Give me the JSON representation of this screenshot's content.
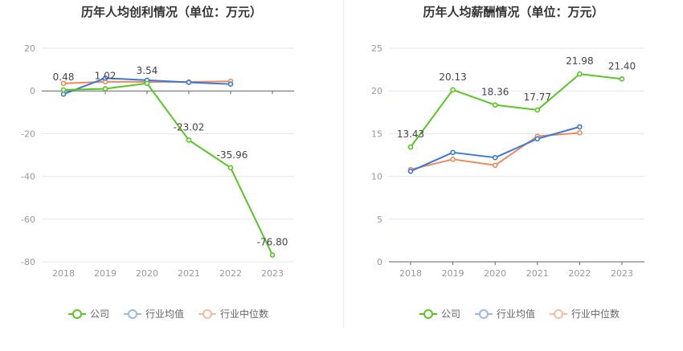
{
  "colors": {
    "company": "#5ac626",
    "industry_avg": "#3b78d8",
    "industry_median": "#f08a5d",
    "axis": "#999999",
    "grid": "#e6e6f0",
    "label": "#444444"
  },
  "chart_data": [
    {
      "type": "line",
      "title": "历年人均创利情况（单位：万元）",
      "categories": [
        "2018",
        "2019",
        "2020",
        "2021",
        "2022",
        "2023"
      ],
      "ylim": [
        -80,
        20
      ],
      "yticks": [
        "20",
        "0",
        "-20",
        "-40",
        "-60",
        "-80"
      ],
      "grid": true,
      "legend_position": "bottom",
      "series": [
        {
          "name": "公司",
          "values": [
            0.48,
            1.02,
            3.54,
            -23.02,
            -35.96,
            -76.8
          ],
          "labels": [
            "0.48",
            "1.02",
            "3.54",
            "-23.02",
            "-35.96",
            "-76.80"
          ]
        },
        {
          "name": "行业均值",
          "values": [
            -1.5,
            6.0,
            5.0,
            4.0,
            3.2,
            null
          ]
        },
        {
          "name": "行业中位数",
          "values": [
            3.5,
            4.3,
            4.2,
            4.2,
            4.5,
            null
          ]
        }
      ]
    },
    {
      "type": "line",
      "title": "历年人均薪酬情况（单位：万元）",
      "categories": [
        "2018",
        "2019",
        "2020",
        "2021",
        "2022",
        "2023"
      ],
      "ylim": [
        0,
        25
      ],
      "yticks": [
        "25",
        "20",
        "15",
        "10",
        "5",
        "0"
      ],
      "grid": true,
      "legend_position": "bottom",
      "series": [
        {
          "name": "公司",
          "values": [
            13.43,
            20.13,
            18.36,
            17.77,
            21.98,
            21.4
          ],
          "labels": [
            "13.43",
            "20.13",
            "18.36",
            "17.77",
            "21.98",
            "21.40"
          ]
        },
        {
          "name": "行业均值",
          "values": [
            10.6,
            12.8,
            12.2,
            14.4,
            15.8,
            null
          ]
        },
        {
          "name": "行业中位数",
          "values": [
            10.8,
            12.0,
            11.3,
            14.7,
            15.1,
            null
          ]
        }
      ]
    }
  ]
}
